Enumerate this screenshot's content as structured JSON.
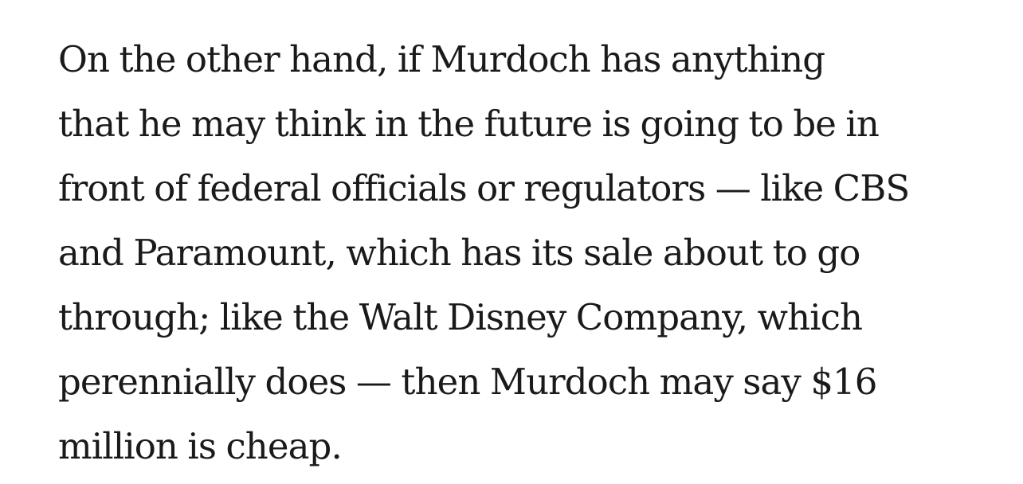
{
  "article": {
    "paragraph_lines": [
      "On the other hand, if Murdoch has anything",
      "that he may think in the future is going to be in",
      "front of federal officials or regulators — like CBS",
      "and Paramount, which has its sale about to go",
      "through; like the Walt Disney Company, which",
      "perennially does — then Murdoch may say $16",
      "million is cheap."
    ]
  }
}
